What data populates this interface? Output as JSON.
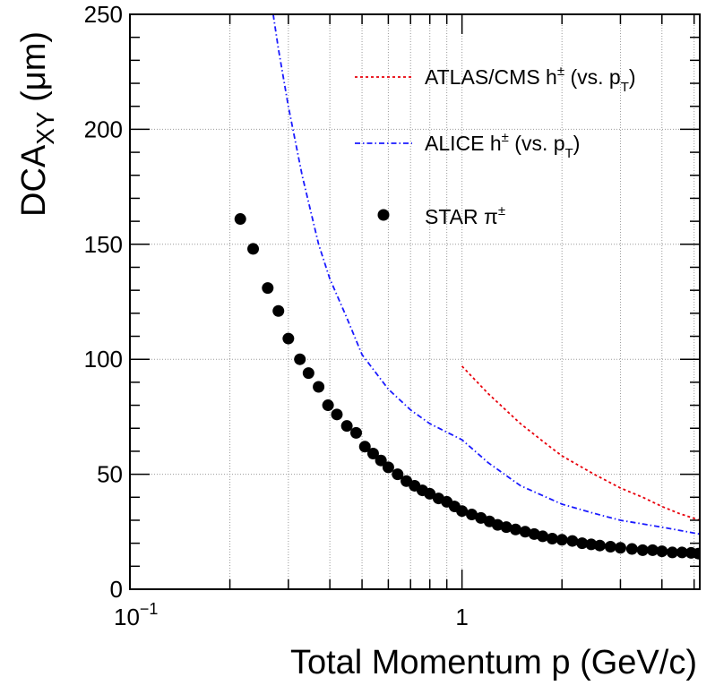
{
  "chart_data": {
    "type": "scatter",
    "xscale": "log",
    "xlim": [
      0.1,
      5.2
    ],
    "ylim": [
      0,
      250
    ],
    "grid": true,
    "legend_position": "top-right",
    "xlabel": "Total Momentum p (GeV/c)",
    "ylabel": {
      "base": "DCA",
      "sub": "XY",
      "unit": "(μm)"
    },
    "x_ticks": [
      {
        "value": 0.1,
        "base": "10",
        "exp": "−1"
      },
      {
        "value": 1,
        "base": "1",
        "exp": ""
      }
    ],
    "y_ticks": [
      0,
      50,
      100,
      150,
      200,
      250
    ],
    "series": [
      {
        "name": "ATLAS/CMS h± (vs. pT)",
        "legend": {
          "main": "ATLAS/CMS h",
          "sup": "±",
          "mid": " (vs. p",
          "sub": "T",
          "end": ")"
        },
        "style": "dotted-line",
        "color": "#e8000b",
        "x": [
          1.0,
          1.2,
          1.5,
          1.8,
          2.0,
          2.5,
          3.0,
          3.5,
          4.0,
          4.5,
          5.2
        ],
        "y": [
          97,
          85,
          72,
          63,
          58,
          50,
          44,
          40,
          36,
          33,
          30
        ]
      },
      {
        "name": "ALICE h± (vs. pT)",
        "legend": {
          "main": "ALICE h",
          "sup": "±",
          "mid": " (vs. p",
          "sub": "T",
          "end": ")"
        },
        "style": "dash-dot-line",
        "color": "#1a1aff",
        "x": [
          0.27,
          0.28,
          0.3,
          0.33,
          0.37,
          0.4,
          0.45,
          0.5,
          0.6,
          0.7,
          0.8,
          1.0,
          1.2,
          1.5,
          2.0,
          2.5,
          3.0,
          4.0,
          5.2
        ],
        "y": [
          250,
          235,
          210,
          180,
          150,
          135,
          118,
          102,
          87,
          78,
          72,
          65,
          55,
          45,
          37,
          33,
          30,
          27,
          24
        ]
      },
      {
        "name": "STAR π±",
        "legend": {
          "main": "STAR π",
          "sup": "±",
          "mid": "",
          "sub": "",
          "end": ""
        },
        "style": "markers",
        "color": "#000000",
        "x": [
          0.215,
          0.235,
          0.26,
          0.28,
          0.3,
          0.325,
          0.345,
          0.37,
          0.395,
          0.42,
          0.45,
          0.48,
          0.51,
          0.54,
          0.57,
          0.6,
          0.64,
          0.68,
          0.72,
          0.76,
          0.8,
          0.85,
          0.9,
          0.95,
          1.0,
          1.07,
          1.14,
          1.21,
          1.28,
          1.36,
          1.45,
          1.55,
          1.65,
          1.75,
          1.87,
          2.0,
          2.15,
          2.3,
          2.45,
          2.6,
          2.8,
          3.0,
          3.25,
          3.5,
          3.75,
          4.0,
          4.3,
          4.6,
          4.9,
          5.15
        ],
        "y": [
          161,
          148,
          131,
          121,
          109,
          100,
          94,
          88,
          80,
          76,
          71,
          68,
          62,
          59,
          56,
          53,
          50,
          47,
          45,
          43,
          41.5,
          39.5,
          38,
          36,
          34,
          32.5,
          31,
          29.5,
          28,
          27,
          26,
          25,
          24,
          23,
          22,
          21.5,
          21,
          20,
          19.5,
          19,
          18.5,
          18,
          17.5,
          17,
          17,
          16.5,
          16,
          16,
          15.8,
          15.5
        ]
      }
    ]
  }
}
